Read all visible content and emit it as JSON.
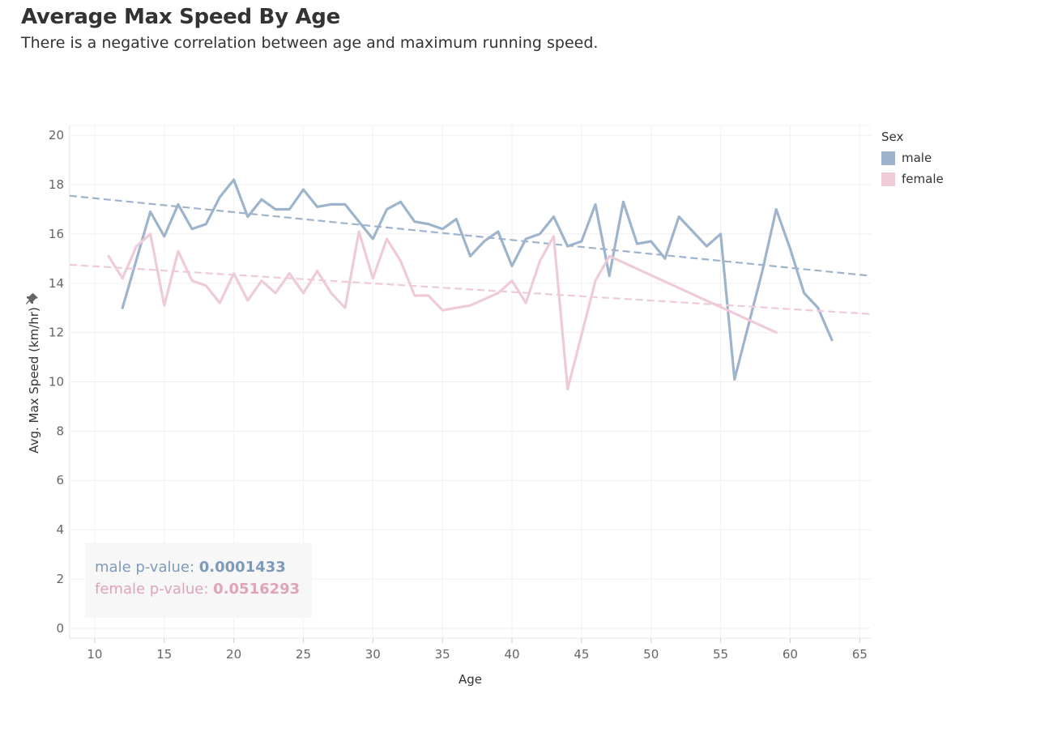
{
  "title": "Average Max Speed By Age",
  "subtitle": "There is a negative correlation between age and maximum running speed.",
  "legend": {
    "title": "Sex",
    "items": [
      {
        "label": "male",
        "color": "#9db4cc"
      },
      {
        "label": "female",
        "color": "#eecbd7"
      }
    ]
  },
  "pvalues": {
    "male_label": "male p-value: ",
    "male_value": "0.0001433",
    "female_label": "female p-value: ",
    "female_value": "0.0516293",
    "male_color": "#7f9ab8",
    "female_color": "#e0a3b8"
  },
  "chart_data": {
    "type": "line",
    "xlabel": "Age",
    "ylabel": "Avg. Max Speed (km/hr)",
    "xlim": [
      8.2,
      65.8
    ],
    "ylim": [
      -0.4,
      20.4
    ],
    "xticks": [
      10,
      15,
      20,
      25,
      30,
      35,
      40,
      45,
      50,
      55,
      60,
      65
    ],
    "yticks": [
      0,
      2,
      4,
      6,
      8,
      10,
      12,
      14,
      16,
      18,
      20
    ],
    "grid": true,
    "legend_position": "top-right",
    "series": [
      {
        "name": "male",
        "color": "#9db4cc",
        "x": [
          12,
          14,
          15,
          16,
          17,
          18,
          19,
          20,
          21,
          22,
          23,
          24,
          25,
          26,
          27,
          28,
          29,
          30,
          31,
          32,
          33,
          34,
          35,
          36,
          37,
          38,
          39,
          40,
          41,
          42,
          43,
          44,
          45,
          46,
          47,
          48,
          49,
          50,
          51,
          52,
          54,
          55,
          56,
          58,
          59,
          60,
          61,
          62,
          63
        ],
        "y": [
          13.0,
          16.9,
          15.9,
          17.2,
          16.2,
          16.4,
          17.5,
          18.2,
          16.7,
          17.4,
          17.0,
          17.0,
          17.8,
          17.1,
          17.2,
          17.2,
          16.5,
          15.8,
          17.0,
          17.3,
          16.5,
          16.4,
          16.2,
          16.6,
          15.1,
          15.7,
          16.1,
          14.7,
          15.8,
          16.0,
          16.7,
          15.5,
          15.7,
          17.2,
          14.3,
          17.3,
          15.6,
          15.7,
          15.0,
          16.7,
          15.5,
          16.0,
          10.1,
          14.5,
          17.0,
          15.4,
          13.6,
          13.0,
          11.7
        ],
        "trend": [
          17.55,
          14.3
        ]
      },
      {
        "name": "female",
        "color": "#eecbd7",
        "x": [
          11,
          12,
          13,
          14,
          15,
          16,
          17,
          18,
          19,
          20,
          21,
          22,
          23,
          24,
          25,
          26,
          27,
          28,
          29,
          30,
          31,
          32,
          33,
          34,
          35,
          36,
          37,
          39,
          40,
          41,
          42,
          43,
          44,
          46,
          47,
          59
        ],
        "y": [
          15.1,
          14.2,
          15.5,
          16.0,
          13.1,
          15.3,
          14.1,
          13.9,
          13.2,
          14.4,
          13.3,
          14.1,
          13.6,
          14.4,
          13.6,
          14.5,
          13.6,
          13.0,
          16.1,
          14.2,
          15.8,
          14.9,
          13.5,
          13.5,
          12.9,
          13.0,
          13.1,
          13.6,
          14.1,
          13.2,
          14.9,
          15.9,
          9.7,
          14.1,
          15.1,
          12.0
        ],
        "trend": [
          14.75,
          12.75
        ]
      }
    ]
  }
}
